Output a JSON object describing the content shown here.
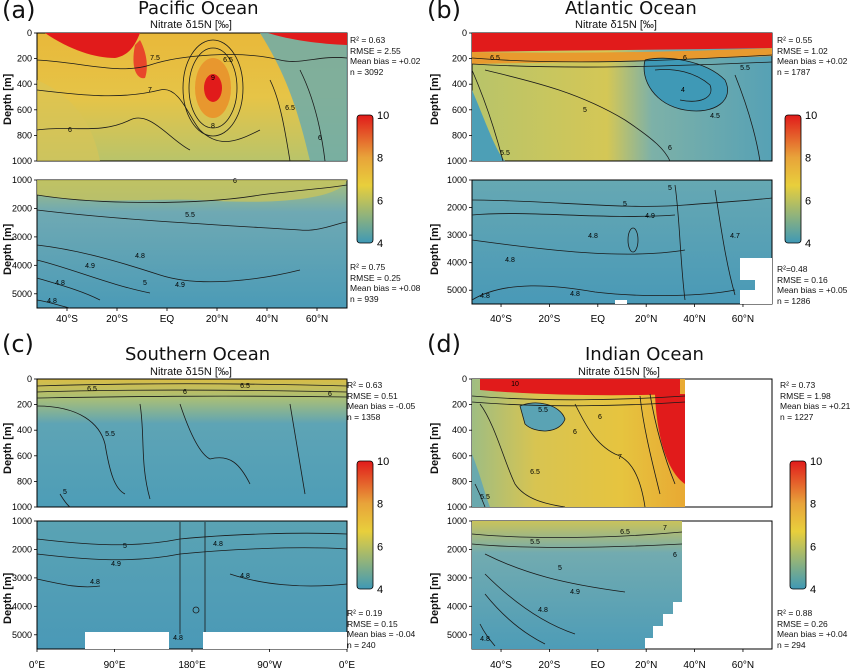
{
  "colorbar": {
    "ticks": [
      "10",
      "8",
      "6",
      "4"
    ],
    "min": 4,
    "max": 10
  },
  "colors": {
    "low": "#3f99b6",
    "mid": "#e8c23c",
    "high": "#e11b1b",
    "contour": "#1a1a1a"
  },
  "chart_data": [
    {
      "id": "a",
      "letter": "(a)",
      "title": "Pacific Ocean",
      "subtitle": "Nitrate δ15N [‰]",
      "type": "heatmap",
      "upper": {
        "ylabel": "Depth [m]",
        "yticks": [
          "0",
          "200",
          "400",
          "600",
          "800",
          "1000"
        ],
        "ylim": [
          0,
          1000
        ],
        "stats": [
          "R² = 0.63",
          "RMSE = 2.55",
          "Mean bias = +0.02",
          "n = 3092"
        ],
        "contour_labels": [
          "7",
          "7.5",
          "6.5",
          "9",
          "8",
          "6",
          "6.5",
          "6"
        ]
      },
      "lower": {
        "ylabel": "Depth [m]",
        "yticks": [
          "1000",
          "2000",
          "3000",
          "4000",
          "5000"
        ],
        "ylim": [
          1000,
          5500
        ],
        "stats": [
          "R² = 0.75",
          "RMSE = 0.25",
          "Mean bias = +0.08",
          "n = 939"
        ],
        "contour_labels": [
          "6",
          "5.5",
          "5",
          "4.9",
          "4.8",
          "4.8",
          "4.9",
          "4.8"
        ]
      },
      "xticks": [
        "40°S",
        "20°S",
        "EQ",
        "20°N",
        "40°N",
        "60°N"
      ]
    },
    {
      "id": "b",
      "letter": "(b)",
      "title": "Atlantic Ocean",
      "subtitle": "Nitrate δ15N [‰]",
      "type": "heatmap",
      "upper": {
        "ylabel": "Depth [m]",
        "yticks": [
          "0",
          "200",
          "400",
          "600",
          "800",
          "1000"
        ],
        "ylim": [
          0,
          1000
        ],
        "stats": [
          "R² = 0.55",
          "RMSE = 1.02",
          "Mean bias = +0.02",
          "n = 1787"
        ],
        "contour_labels": [
          "6.5",
          "6",
          "5.5",
          "5",
          "4",
          "4.5",
          "5.5",
          "6"
        ]
      },
      "lower": {
        "ylabel": "Depth [m]",
        "yticks": [
          "1000",
          "2000",
          "3000",
          "4000",
          "5000"
        ],
        "ylim": [
          1000,
          5500
        ],
        "stats": [
          "R²=0.48",
          "RMSE = 0.16",
          "Mean bias = +0.05",
          "n = 1286"
        ],
        "contour_labels": [
          "5",
          "4.9",
          "4.8",
          "4.8",
          "4.8",
          "4.7",
          "4.8",
          "5"
        ]
      },
      "xticks": [
        "40°S",
        "20°S",
        "EQ",
        "20°N",
        "40°N",
        "60°N"
      ]
    },
    {
      "id": "c",
      "letter": "(c)",
      "title": "Southern Ocean",
      "subtitle": "Nitrate δ15N [‰]",
      "type": "heatmap",
      "upper": {
        "ylabel": "Depth [m]",
        "yticks": [
          "0",
          "200",
          "400",
          "600",
          "800",
          "1000"
        ],
        "ylim": [
          0,
          1000
        ],
        "stats": [
          "R² = 0.63",
          "RMSE = 0.51",
          "Mean bias = -0.05",
          "n = 1358"
        ],
        "contour_labels": [
          "6.5",
          "6",
          "6.5",
          "6",
          "5.5",
          "5"
        ]
      },
      "lower": {
        "ylabel": "Depth [m]",
        "yticks": [
          "1000",
          "2000",
          "3000",
          "4000",
          "5000"
        ],
        "ylim": [
          1000,
          5500
        ],
        "stats": [
          "R² = 0.19",
          "RMSE = 0.15",
          "Mean bias = -0.04",
          "n = 240"
        ],
        "contour_labels": [
          "5",
          "4.9",
          "4.8",
          "4.8",
          "4.8",
          "4.8"
        ]
      },
      "xticks": [
        "0°E",
        "90°E",
        "180°E",
        "90°W",
        "0°E"
      ]
    },
    {
      "id": "d",
      "letter": "(d)",
      "title": "Indian Ocean",
      "subtitle": "Nitrate δ15N [‰]",
      "type": "heatmap",
      "upper": {
        "ylabel": "Depth [m]",
        "yticks": [
          "0",
          "200",
          "400",
          "600",
          "800",
          "1000"
        ],
        "ylim": [
          0,
          1000
        ],
        "stats": [
          "R² = 0.73",
          "RMSE = 1.98",
          "Mean bias = +0.21",
          "n = 1227"
        ],
        "contour_labels": [
          "10",
          "5.5",
          "6",
          "6",
          "7",
          "6.5",
          "5.5"
        ]
      },
      "lower": {
        "ylabel": "Depth [m]",
        "yticks": [
          "1000",
          "2000",
          "3000",
          "4000",
          "5000"
        ],
        "ylim": [
          1000,
          5500
        ],
        "stats": [
          "R² = 0.88",
          "RMSE = 0.26",
          "Mean bias = +0.04",
          "n = 294"
        ],
        "contour_labels": [
          "6.5",
          "7",
          "6",
          "5.5",
          "5",
          "4.9",
          "4.8",
          "4.8"
        ]
      },
      "xticks": [
        "40°S",
        "20°S",
        "EQ",
        "20°N",
        "40°N",
        "60°N"
      ]
    }
  ]
}
